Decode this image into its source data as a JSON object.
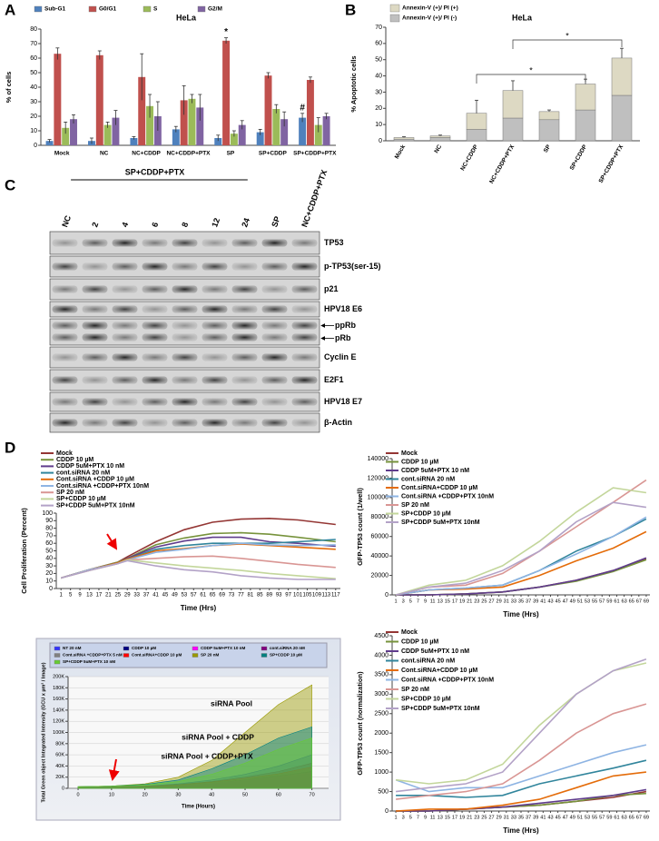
{
  "panel_labels": [
    "A",
    "B",
    "C",
    "D"
  ],
  "chart_data": [
    {
      "type": "bar",
      "title": "HeLa",
      "ylabel": "% of cells",
      "categories": [
        "Mock",
        "NC",
        "NC+CDDP",
        "NC+CDDP+PTX",
        "SP",
        "SP+CDDP",
        "SP+CDDP+PTX"
      ],
      "series": [
        {
          "name": "Sub-G1",
          "color": "#4f81bd",
          "values": [
            3,
            3,
            5,
            11,
            5,
            9,
            19
          ],
          "errors": [
            1,
            2,
            1,
            2,
            2,
            2,
            3
          ]
        },
        {
          "name": "G0/G1",
          "color": "#c0504d",
          "values": [
            63,
            62,
            47,
            31,
            72,
            48,
            45
          ],
          "errors": [
            4,
            3,
            16,
            10,
            2,
            2,
            2
          ]
        },
        {
          "name": "S",
          "color": "#9bbb59",
          "values": [
            12,
            14,
            27,
            32,
            8,
            25,
            14
          ],
          "errors": [
            4,
            2,
            8,
            3,
            2,
            3,
            5
          ]
        },
        {
          "name": "G2/M",
          "color": "#8064a2",
          "values": [
            18,
            19,
            20,
            26,
            14,
            18,
            20
          ],
          "errors": [
            3,
            5,
            10,
            9,
            3,
            5,
            2
          ]
        }
      ],
      "ylim": [
        0,
        80
      ],
      "yticks": [
        0,
        10,
        20,
        30,
        40,
        50,
        60,
        70,
        80
      ],
      "grid": false,
      "annotations": [
        "*",
        "#"
      ]
    },
    {
      "type": "stacked_bar",
      "title": "HeLa",
      "ylabel": "% Apoptotic cells",
      "categories": [
        "Mock",
        "NC",
        "NC+CDDP",
        "NC+CDDP+PTX",
        "SP",
        "SP+CDDP",
        "SP+CDDP+PTX"
      ],
      "series": [
        {
          "name": "Annexin-V (+)/ PI (+)",
          "color": "#ddd9c3",
          "values": [
            1,
            1,
            10,
            17,
            5,
            16,
            23
          ],
          "errors": [
            0.5,
            0.5,
            8,
            6,
            1,
            3,
            6
          ]
        },
        {
          "name": "Annexin-V (+)/ PI (-)",
          "color": "#bfbfbf",
          "values": [
            1,
            2,
            7,
            14,
            13,
            19,
            28
          ],
          "errors": [
            0.5,
            0.5,
            5,
            2,
            2,
            6,
            5
          ]
        }
      ],
      "ylim": [
        0,
        70
      ],
      "yticks": [
        0,
        10,
        20,
        30,
        40,
        50,
        60,
        70
      ],
      "grid": false,
      "annotations": [
        "*",
        "*"
      ]
    },
    {
      "type": "line",
      "ylabel": "Cell Proliferation (Percent)",
      "xlabel": "Time (Hrs)",
      "x": [
        1,
        13,
        25,
        29,
        41,
        53,
        65,
        77,
        89,
        101,
        117
      ],
      "xlim": [
        -1,
        119
      ],
      "xticks": [
        1,
        5,
        9,
        13,
        17,
        21,
        25,
        29,
        33,
        37,
        41,
        45,
        49,
        53,
        57,
        61,
        65,
        69,
        73,
        77,
        81,
        85,
        89,
        93,
        97,
        101,
        105,
        109,
        113,
        117
      ],
      "ylim": [
        0,
        100
      ],
      "yticks": [
        0,
        10,
        20,
        30,
        40,
        50,
        60,
        70,
        80,
        90,
        100
      ],
      "grid": false,
      "series": [
        {
          "name": "Mock",
          "color": "#943634",
          "values": [
            14,
            25,
            35,
            42,
            62,
            78,
            88,
            92,
            93,
            91,
            85
          ]
        },
        {
          "name": "CDDP 10 µM",
          "color": "#77933c",
          "values": [
            14,
            25,
            35,
            40,
            58,
            67,
            73,
            74,
            72,
            68,
            62
          ]
        },
        {
          "name": "CDDP 5uM+PTX 10 nM",
          "color": "#5f3c8c",
          "values": [
            14,
            25,
            34,
            40,
            55,
            63,
            68,
            68,
            62,
            60,
            56
          ]
        },
        {
          "name": "cont.siRNA 20 nM",
          "color": "#31859c",
          "values": [
            14,
            25,
            34,
            39,
            52,
            57,
            60,
            60,
            60,
            62,
            65
          ]
        },
        {
          "name": "Cont.siRNA +CDDP 10 µM",
          "color": "#e46c0a",
          "values": [
            14,
            25,
            34,
            39,
            50,
            53,
            57,
            59,
            57,
            55,
            52
          ]
        },
        {
          "name": "Cont.siRNA +CDDP+PTX 10nM",
          "color": "#8eb4e3",
          "values": [
            14,
            25,
            33,
            38,
            48,
            52,
            57,
            60,
            58,
            57,
            58
          ]
        },
        {
          "name": "SP 20 nM",
          "color": "#d99694",
          "values": [
            14,
            24,
            33,
            38,
            40,
            42,
            43,
            40,
            36,
            32,
            28
          ]
        },
        {
          "name": "SP+CDDP 10 µM",
          "color": "#c3d69b",
          "values": [
            14,
            24,
            33,
            38,
            34,
            30,
            27,
            24,
            20,
            17,
            13
          ]
        },
        {
          "name": "SP+CDDP 5uM+PTX 10nM",
          "color": "#b3a2c7",
          "values": [
            14,
            24,
            33,
            37,
            30,
            25,
            22,
            17,
            14,
            12,
            12
          ]
        }
      ]
    },
    {
      "type": "line",
      "ylabel": "GFP-TP53 count (1/well)",
      "xlabel": "Time (Hrs)",
      "x": [
        1,
        10,
        20,
        30,
        40,
        50,
        60,
        69
      ],
      "xlim": [
        0,
        70
      ],
      "xticks": [
        1,
        3,
        5,
        7,
        9,
        11,
        13,
        15,
        17,
        19,
        21,
        23,
        25,
        27,
        29,
        31,
        33,
        35,
        37,
        39,
        41,
        43,
        45,
        47,
        49,
        51,
        53,
        55,
        57,
        59,
        61,
        63,
        65,
        67,
        69
      ],
      "ylim": [
        0,
        140000
      ],
      "yticks": [
        0,
        20000,
        40000,
        60000,
        80000,
        100000,
        120000,
        140000
      ],
      "grid": false,
      "series": [
        {
          "name": "Mock",
          "color": "#943634",
          "values": [
            0,
            0,
            1000,
            3000,
            8000,
            15000,
            25000,
            37000
          ]
        },
        {
          "name": "CDDP 10 µM",
          "color": "#77933c",
          "values": [
            0,
            0,
            1000,
            3000,
            8000,
            14000,
            24000,
            36000
          ]
        },
        {
          "name": "CDDP 5uM+PTX 10 nM",
          "color": "#5f3c8c",
          "values": [
            0,
            0,
            1000,
            3000,
            8000,
            15000,
            25000,
            38000
          ]
        },
        {
          "name": "cont.siRNA 20 nM",
          "color": "#31859c",
          "values": [
            0,
            5000,
            7000,
            10000,
            25000,
            45000,
            60000,
            78000
          ]
        },
        {
          "name": "Cont.siRNA+CDDP 10 µM",
          "color": "#e46c0a",
          "values": [
            0,
            5000,
            6000,
            8000,
            20000,
            35000,
            48000,
            65000
          ]
        },
        {
          "name": "Cont.siRNA +CDDP+PTX 10nM",
          "color": "#8eb4e3",
          "values": [
            0,
            5000,
            7000,
            10000,
            25000,
            42000,
            60000,
            80000
          ]
        },
        {
          "name": "SP 20 nM",
          "color": "#d99694",
          "values": [
            0,
            8000,
            10000,
            22000,
            45000,
            70000,
            95000,
            118000
          ]
        },
        {
          "name": "SP+CDDP 10 µM",
          "color": "#c3d69b",
          "values": [
            0,
            10000,
            15000,
            30000,
            55000,
            85000,
            110000,
            105000
          ]
        },
        {
          "name": "SP+CDDP 5uM+PTX 10nM",
          "color": "#b3a2c7",
          "values": [
            0,
            8000,
            12000,
            25000,
            45000,
            75000,
            95000,
            90000
          ]
        }
      ]
    },
    {
      "type": "area",
      "ylabel": "Total Green object Integrated Intensity (GCU x µm² / Image)",
      "xlabel": "Time (Hours)",
      "x": [
        0,
        10,
        20,
        30,
        40,
        50,
        60,
        70
      ],
      "xlim": [
        -3,
        75
      ],
      "xticks": [
        0,
        10,
        20,
        30,
        40,
        50,
        60,
        70
      ],
      "ylim": [
        0,
        200000
      ],
      "yticks": [
        0,
        {
          "value": 20000,
          "label": "20K"
        },
        {
          "value": 40000,
          "label": "40K"
        },
        {
          "value": 60000,
          "label": "60K"
        },
        {
          "value": 80000,
          "label": "80K"
        },
        {
          "value": 100000,
          "label": "100K"
        },
        {
          "value": 120000,
          "label": "120K"
        },
        {
          "value": 140000,
          "label": "140K"
        },
        {
          "value": 160000,
          "label": "160K"
        },
        {
          "value": 180000,
          "label": "180K"
        },
        {
          "value": 200000,
          "label": "200K"
        }
      ],
      "grid": true,
      "annotations": [
        "siRNA Pool",
        "siRNA Pool + CDDP",
        "siRNA Pool + CDDP+PTX"
      ],
      "series": [
        {
          "name": "NT 20 nM",
          "color": "#3333ff",
          "values": [
            2000,
            2500,
            4000,
            8000,
            15000,
            25000,
            40000,
            60000
          ]
        },
        {
          "name": "CDDP 10 µM",
          "color": "#000080",
          "values": [
            2000,
            2500,
            3500,
            6000,
            10000,
            15000,
            22000,
            30000
          ]
        },
        {
          "name": "CDDP 5uM+PTX 10 nM",
          "color": "#ff00ff",
          "values": [
            2000,
            2500,
            3500,
            5000,
            9000,
            14000,
            20000,
            28000
          ]
        },
        {
          "name": "cont.siRNA 20 nM",
          "color": "#800080",
          "values": [
            2000,
            2500,
            4000,
            7000,
            12000,
            20000,
            30000,
            45000
          ]
        },
        {
          "name": "Cont.siRNA +CDDP+PTX 5 nM",
          "color": "#808080",
          "values": [
            2000,
            2500,
            3500,
            6000,
            10000,
            16000,
            24000,
            35000
          ]
        },
        {
          "name": "Cont.siRNA+CDDP 10 µM",
          "color": "#ff0000",
          "values": [
            2000,
            2500,
            3500,
            6000,
            11000,
            18000,
            26000,
            38000
          ]
        },
        {
          "name": "SP 20 nM",
          "color": "#999900",
          "values": [
            3000,
            4000,
            8000,
            20000,
            50000,
            100000,
            150000,
            185000
          ]
        },
        {
          "name": "SP+CDDP 10 µM",
          "color": "#008080",
          "values": [
            3000,
            4000,
            7000,
            15000,
            35000,
            60000,
            90000,
            110000
          ]
        },
        {
          "name": "SP+CDDP 5uM+PTX 10 nM",
          "color": "#66cc33",
          "values": [
            3000,
            4000,
            6000,
            12000,
            25000,
            45000,
            70000,
            90000
          ]
        }
      ]
    },
    {
      "type": "line",
      "ylabel": "GFP-TP53 count (normalization)",
      "xlabel": "Time (Hrs)",
      "x": [
        1,
        10,
        20,
        30,
        40,
        50,
        60,
        69
      ],
      "xlim": [
        0,
        70
      ],
      "xticks": [
        1,
        3,
        5,
        7,
        9,
        11,
        13,
        15,
        17,
        19,
        21,
        23,
        25,
        27,
        29,
        31,
        33,
        35,
        37,
        39,
        41,
        43,
        45,
        47,
        49,
        51,
        53,
        55,
        57,
        59,
        61,
        63,
        65,
        67,
        69
      ],
      "ylim": [
        0,
        4500
      ],
      "yticks": [
        0,
        500,
        1000,
        1500,
        2000,
        2500,
        3000,
        3500,
        4000,
        4500
      ],
      "grid": false,
      "series": [
        {
          "name": "Mock",
          "color": "#943634",
          "values": [
            0,
            0,
            50,
            100,
            150,
            250,
            350,
            500
          ]
        },
        {
          "name": "CDDP 10 µM",
          "color": "#77933c",
          "values": [
            0,
            0,
            50,
            100,
            150,
            250,
            400,
            450
          ]
        },
        {
          "name": "CDDP 5uM+PTX 10 nM",
          "color": "#5f3c8c",
          "values": [
            0,
            0,
            50,
            100,
            200,
            300,
            400,
            550
          ]
        },
        {
          "name": "cont.siRNA 20 nM",
          "color": "#31859c",
          "values": [
            400,
            400,
            350,
            400,
            700,
            900,
            1100,
            1300
          ]
        },
        {
          "name": "Cont.siRNA+CDDP 10 µM",
          "color": "#e46c0a",
          "values": [
            0,
            50,
            50,
            150,
            300,
            600,
            900,
            1000
          ]
        },
        {
          "name": "Cont.siRNA +CDDP+PTX 10nM",
          "color": "#8eb4e3",
          "values": [
            800,
            500,
            600,
            600,
            900,
            1200,
            1500,
            1700
          ]
        },
        {
          "name": "SP 20 nM",
          "color": "#d99694",
          "values": [
            300,
            400,
            500,
            700,
            1300,
            2000,
            2500,
            2750
          ]
        },
        {
          "name": "SP+CDDP 10 µM",
          "color": "#c3d69b",
          "values": [
            800,
            700,
            800,
            1200,
            2200,
            3000,
            3600,
            3800
          ]
        },
        {
          "name": "SP+CDDP 5uM+PTX 10nM",
          "color": "#b3a2c7",
          "values": [
            500,
            600,
            700,
            1000,
            2000,
            3000,
            3600,
            3900
          ]
        }
      ]
    }
  ],
  "blot": {
    "group_label": "SP+CDDP+PTX",
    "lanes": [
      "NC",
      "2",
      "4",
      "6",
      "8",
      "12",
      "24",
      "SP",
      "NC+CDDP+PTX"
    ],
    "rows": [
      {
        "labels": [
          "TP53"
        ]
      },
      {
        "labels": [
          "p-TP53(ser-15)"
        ]
      },
      {
        "labels": [
          "p21"
        ]
      },
      {
        "labels": [
          "HPV18 E6"
        ]
      },
      {
        "labels": [
          "ppRb",
          "pRb"
        ]
      },
      {
        "labels": [
          "Cyclin E"
        ]
      },
      {
        "labels": [
          "E2F1"
        ]
      },
      {
        "labels": [
          "HPV18 E7"
        ]
      },
      {
        "labels": [
          "β-Actin"
        ]
      }
    ]
  }
}
